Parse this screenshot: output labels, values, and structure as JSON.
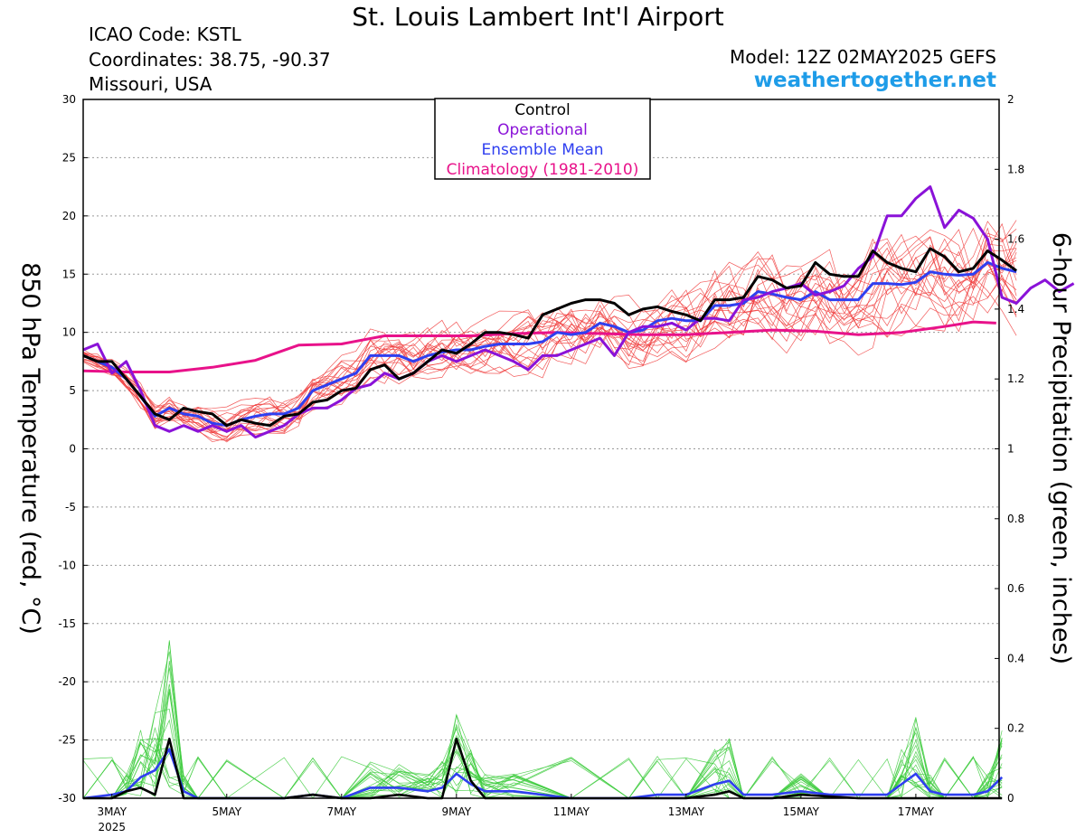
{
  "header": {
    "title": "St. Louis Lambert Int'l Airport",
    "icao": "ICAO Code: KSTL",
    "coordinates": "Coordinates: 38.75, -90.37",
    "region": "Missouri, USA",
    "model": "Model: 12Z 02MAY2025 GEFS",
    "website": "weathertogether.net"
  },
  "chart_data": {
    "type": "line",
    "ylabel": "850 hPa Temperature (red, °C)",
    "y2label": "6-hour Precipitation (green, inches)",
    "ylim": [
      -30,
      30
    ],
    "y2lim": [
      0,
      2
    ],
    "yticks": [
      "30",
      "25",
      "20",
      "15",
      "10",
      "5",
      "0",
      "-5",
      "-10",
      "-15",
      "-20",
      "-25",
      "-30"
    ],
    "y2ticks": [
      "2",
      "1.8",
      "1.6",
      "1.4",
      "1.2",
      "1",
      "0.8",
      "0.6",
      "0.4",
      "0.2",
      "0"
    ],
    "xticks": [
      {
        "day": 3,
        "label": "3MAY",
        "sub": "2025"
      },
      {
        "day": 5,
        "label": "5MAY"
      },
      {
        "day": 7,
        "label": "7MAY"
      },
      {
        "day": 9,
        "label": "9MAY"
      },
      {
        "day": 11,
        "label": "11MAY"
      },
      {
        "day": 13,
        "label": "13MAY"
      },
      {
        "day": 15,
        "label": "15MAY"
      },
      {
        "day": 17,
        "label": "17MAY"
      }
    ],
    "grid": true,
    "legend_placement": "top-center",
    "legend": [
      {
        "label": "Control",
        "color": "#000000"
      },
      {
        "label": "Operational",
        "color": "#8a12d8"
      },
      {
        "label": "Ensemble Mean",
        "color": "#2f3ff0"
      },
      {
        "label": "Climatology (1981-2010)",
        "color": "#e8128a"
      }
    ],
    "x_start_day": 2.5,
    "x_step_days": 0.25,
    "series": [
      {
        "name": "Control",
        "axis": "temperature",
        "color": "#000000",
        "values": [
          8,
          7.5,
          7.5,
          6,
          4.5,
          3,
          2.5,
          3.5,
          3.2,
          3,
          2,
          2.5,
          2.2,
          2,
          2.8,
          3,
          4,
          4.2,
          5,
          5.2,
          6.8,
          7.2,
          6,
          6.5,
          7.5,
          8.5,
          8.2,
          9,
          10,
          10,
          9.8,
          9.5,
          11.5,
          12,
          12.5,
          12.8,
          12.8,
          12.5,
          11.5,
          12,
          12.2,
          11.8,
          11.5,
          11,
          12.8,
          12.8,
          13,
          14.8,
          14.5,
          13.8,
          14,
          16,
          15,
          14.8,
          14.8,
          17,
          16,
          15.5,
          15.2,
          17.2,
          16.5,
          15.2,
          15.5,
          17,
          16.2,
          15.3
        ]
      },
      {
        "name": "Operational",
        "axis": "temperature",
        "color": "#8a12d8",
        "values": [
          8.5,
          9,
          6.5,
          7.5,
          5,
          2,
          1.5,
          2,
          1.5,
          2,
          1.5,
          2,
          1,
          1.5,
          2,
          3,
          3.5,
          3.5,
          4.2,
          5.2,
          5.5,
          6.5,
          6,
          6.5,
          7.5,
          8,
          7.5,
          8,
          8.5,
          8,
          7.5,
          6.8,
          8,
          8,
          8.5,
          9,
          9.5,
          8,
          10,
          10.5,
          10.5,
          10.8,
          10.2,
          11.2,
          11.2,
          11,
          12.8,
          13,
          13.5,
          13.8,
          14.2,
          13.2,
          13.5,
          14,
          15.5,
          16.5,
          20,
          20,
          21.5,
          22.5,
          19,
          20.5,
          19.8,
          18,
          13,
          12.5,
          13.8,
          14.5,
          13.5,
          14.2
        ]
      },
      {
        "name": "Ensemble Mean",
        "axis": "temperature",
        "color": "#2f3ff0",
        "values": [
          8,
          7.5,
          7,
          6,
          4.5,
          2.8,
          3.5,
          3,
          2.8,
          2.2,
          2,
          2.5,
          2.8,
          3,
          3,
          3.5,
          5,
          5.5,
          6,
          6.5,
          8,
          8,
          8,
          7.5,
          8,
          8.3,
          8.5,
          8.5,
          8.8,
          9,
          9,
          9,
          9.2,
          10,
          9.8,
          10,
          10.8,
          10.5,
          10,
          10.2,
          11,
          11.2,
          11,
          11,
          12.3,
          12.3,
          12.5,
          13.5,
          13.3,
          13,
          12.8,
          13.5,
          12.8,
          12.8,
          12.8,
          14.2,
          14.2,
          14.1,
          14.3,
          15.2,
          15,
          14.9,
          15,
          16,
          15.5,
          15.2
        ]
      },
      {
        "name": "Climatology (1981-2010)",
        "axis": "temperature",
        "color": "#e8128a",
        "day": [
          2.5,
          3.25,
          4,
          4.75,
          5.5,
          6.25,
          7,
          7.75,
          8.5,
          9.25,
          10,
          10.75,
          11.5,
          12.25,
          13,
          13.75,
          14.5,
          15.25,
          16,
          16.75,
          17.5,
          18,
          18.4
        ],
        "values": [
          6.7,
          6.6,
          6.6,
          7.0,
          7.6,
          8.9,
          9.0,
          9.7,
          9.7,
          9.7,
          9.9,
          10.0,
          9.9,
          9.8,
          9.8,
          10.0,
          10.2,
          10.1,
          9.8,
          10.0,
          10.5,
          10.9,
          10.8
        ]
      },
      {
        "name": "Control",
        "axis": "precipitation",
        "color": "#000000",
        "day": [
          2.5,
          3,
          3.25,
          3.5,
          3.75,
          4,
          4.25,
          4.5,
          5,
          6,
          6.5,
          7,
          7.5,
          8,
          8.5,
          8.75,
          9,
          9.25,
          9.5,
          10,
          12,
          13,
          13.5,
          13.75,
          14,
          14.5,
          15,
          16,
          17,
          17.5,
          18,
          18.25,
          18.5
        ],
        "values": [
          0,
          0,
          0.02,
          0.03,
          0.01,
          0.17,
          0,
          0,
          0,
          0,
          0.01,
          0,
          0,
          0.01,
          0,
          0,
          0.17,
          0.05,
          0,
          0,
          0,
          0,
          0.01,
          0.02,
          0,
          0,
          0.01,
          0,
          0,
          0,
          0,
          0,
          0
        ]
      },
      {
        "name": "Ensemble Mean",
        "axis": "precipitation",
        "color": "#2f3ff0",
        "day": [
          2.5,
          3,
          3.25,
          3.5,
          3.75,
          4,
          4.25,
          4.5,
          5,
          6,
          6.5,
          7,
          7.5,
          8,
          8.5,
          8.75,
          9,
          9.25,
          9.5,
          10,
          11,
          12,
          12.5,
          13,
          13.5,
          13.75,
          14,
          14.5,
          15,
          15.5,
          16,
          16.5,
          16.75,
          17,
          17.25,
          17.5,
          18,
          18.25,
          18.5
        ],
        "values": [
          0,
          0.01,
          0.02,
          0.06,
          0.08,
          0.14,
          0.02,
          0,
          0,
          0,
          0.01,
          0,
          0.03,
          0.03,
          0.02,
          0.03,
          0.07,
          0.04,
          0.02,
          0.02,
          0,
          0,
          0.01,
          0.01,
          0.04,
          0.05,
          0.01,
          0.01,
          0.02,
          0.01,
          0.01,
          0.01,
          0.04,
          0.07,
          0.02,
          0.01,
          0.01,
          0.02,
          0.06
        ]
      }
    ]
  }
}
